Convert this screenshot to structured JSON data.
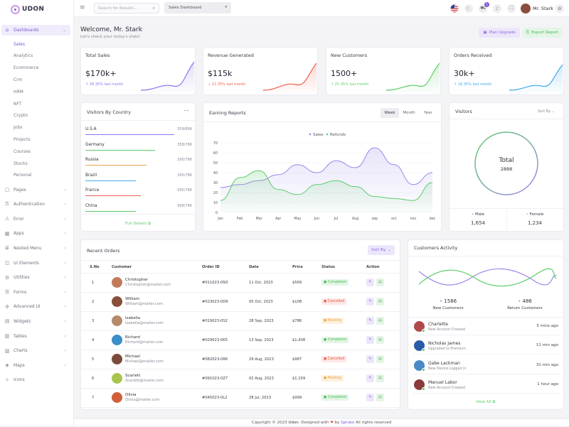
{
  "brand": {
    "name": "UDON"
  },
  "sidebar": {
    "dashboards": "Dashboards",
    "sub": [
      "Sales",
      "Analytics",
      "Ecommerce",
      "Crm",
      "HRM",
      "NFT",
      "Crypto",
      "Jobs",
      "Projects",
      "Courses",
      "Stocks",
      "Personal"
    ],
    "items": [
      "Pages",
      "Authentication",
      "Error",
      "Apps",
      "Nested Menu",
      "Ui Elements",
      "Utilities",
      "Forms",
      "Advanced UI",
      "Widgets",
      "Tables",
      "Charts",
      "Maps",
      "Icons"
    ]
  },
  "topbar": {
    "search_placeholder": "Search for Results...",
    "select_value": "Sales Dashboard",
    "cart_badge": "5",
    "user_name": "Mr. Stark"
  },
  "welcome": {
    "title": "Welcome, Mr. Stark",
    "subtitle": "Let's check your today's stats!",
    "btn_upgrade": "Plan Upgrade",
    "btn_export": "Export Report"
  },
  "stats": [
    {
      "title": "Total Sales",
      "value": "$170k+",
      "change": "26.35% last month",
      "dir": "up",
      "color": "#8b75f0"
    },
    {
      "title": "Revenue Generated",
      "value": "$115k",
      "change": "11.35% last month",
      "dir": "down",
      "color": "#f0604a"
    },
    {
      "title": "New Customers",
      "value": "1500+",
      "change": "25.35% last month",
      "dir": "up",
      "color": "#5ccc6a"
    },
    {
      "title": "Orders Received",
      "value": "30k+",
      "change": "16.35% last month",
      "dir": "up",
      "color": "#42a9ec"
    }
  ],
  "visitors_country": {
    "title": "Visitors By Country",
    "rows": [
      {
        "name": "U.S.A",
        "value": "559/896",
        "pct": 0.83,
        "color": "#8b75f0"
      },
      {
        "name": "Germany",
        "value": "358/786",
        "pct": 0.65,
        "color": "#5ccc6a"
      },
      {
        "name": "Russia",
        "value": "295/786",
        "pct": 0.57,
        "color": "#f0a24a"
      },
      {
        "name": "Brazil",
        "value": "185/786",
        "pct": 0.47,
        "color": "#42a9ec"
      },
      {
        "name": "France",
        "value": "095/786",
        "pct": 0.52,
        "color": "#f0604a"
      },
      {
        "name": "China",
        "value": "068/786",
        "pct": 0.47,
        "color": "#5ccc6a"
      }
    ],
    "link": "Full Details"
  },
  "earning": {
    "title": "Earning Reports",
    "tabs": [
      "Week",
      "Month",
      "Year"
    ]
  },
  "chart_data": {
    "type": "area",
    "title": "",
    "categories": [
      "Jan",
      "Feb",
      "Mar",
      "Apr",
      "May",
      "Jun",
      "Jul",
      "Aug",
      "sep",
      "oct",
      "nov",
      "dec"
    ],
    "series": [
      {
        "name": "Sales",
        "color": "#9b87e8",
        "values": [
          25,
          28,
          32,
          38,
          48,
          40,
          52,
          45,
          65,
          48,
          28,
          40
        ]
      },
      {
        "name": "Refunds",
        "color": "#5ccc6a",
        "values": [
          12,
          35,
          42,
          23,
          18,
          28,
          32,
          26,
          16,
          14,
          12,
          30
        ]
      }
    ],
    "ylim": [
      0,
      70
    ],
    "yticks": [
      "0",
      "10",
      "20",
      "30",
      "40",
      "50",
      "60",
      "70"
    ],
    "grid": true,
    "legend": "top-center"
  },
  "visitors": {
    "title": "Visitors",
    "sort": "Sort By",
    "total_label": "Total",
    "total_value": "2888",
    "male_label": "Male",
    "male_value": "1,654",
    "female_label": "Female",
    "female_value": "1,234"
  },
  "orders": {
    "title": "Recent Orders",
    "sort": "Sort By",
    "headers": [
      "S.No",
      "Customer",
      "Order ID",
      "Date",
      "Price",
      "Status",
      "Action"
    ],
    "rows": [
      {
        "no": "1",
        "name": "Christopher",
        "email": "Christopher@mailer.com",
        "id": "#011023-0N3",
        "date": "11 Oct, 2023",
        "price": "$569",
        "status": "Completed",
        "av": "#c27a5a"
      },
      {
        "no": "2",
        "name": "William",
        "email": "William@mailer.com",
        "id": "#023023-0D6",
        "date": "05 Oct, 2023",
        "price": "$108",
        "status": "Cancelled",
        "av": "#8a4e3c"
      },
      {
        "no": "3",
        "name": "Isabella",
        "email": "Isabella@mailer.com",
        "id": "#019023-0S2",
        "date": "28 Sep, 2023",
        "price": "$786",
        "status": "Pending",
        "av": "#b58a6a"
      },
      {
        "no": "4",
        "name": "Richard",
        "email": "Richard@mailer.com",
        "id": "#029023-0K5",
        "date": "13 Sep, 2023",
        "price": "$1,438",
        "status": "Completed",
        "av": "#3a8ec9"
      },
      {
        "no": "5",
        "name": "Michael",
        "email": "Michael@mailer.com",
        "id": "#082023-0R6",
        "date": "29 Aug, 2023",
        "price": "$987",
        "status": "Cancelled",
        "av": "#7a4b3a"
      },
      {
        "no": "6",
        "name": "Scarlett",
        "email": "Scarlett@mailer.com",
        "id": "#091023-0Z7",
        "date": "02 Aug, 2023",
        "price": "$1,159",
        "status": "Pending",
        "av": "#a8c44e"
      },
      {
        "no": "7",
        "name": "Olivia",
        "email": "Olivia@mailer.com",
        "id": "#045023-0L2",
        "date": "28 Jul, 2023",
        "price": "$999",
        "status": "Completed",
        "av": "#d0603a"
      }
    ]
  },
  "activity": {
    "title": "Customers Activity",
    "new_value": "1586",
    "new_label": "New Customers",
    "return_value": "486",
    "return_label": "Return Customers",
    "rows": [
      {
        "name": "Charlette",
        "desc": "New Account Created",
        "time": "5 mins ago",
        "av": "#b04a4a"
      },
      {
        "name": "Nicholas James",
        "desc": "Upgraded to Premium",
        "time": "11 min ago",
        "av": "#2a5aa8"
      },
      {
        "name": "Gabe Lackman",
        "desc": "New Device Logged in",
        "time": "31 min ago",
        "av": "#4a8ac8"
      },
      {
        "name": "Manuel Labor",
        "desc": "New Account Created",
        "time": "1 hour ago",
        "av": "#8a3a3a"
      }
    ],
    "link": "View All"
  },
  "footer": {
    "pre": "Copyright © 2023 ",
    "brand": "Udon",
    "mid": ". Designed with ",
    "heart": "❤",
    "by": " by ",
    "author": "Spruko",
    "post": " All rights reserved"
  }
}
